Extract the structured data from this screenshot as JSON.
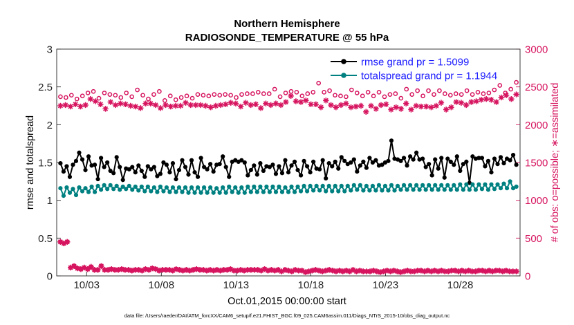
{
  "chart_data": {
    "type": "line",
    "title_line1": "Northern Hemisphere",
    "title_line2": "RADIOSONDE_TEMPERATURE @ 55 hPa",
    "xlabel": "Oct.01,2015 00:00:00 start",
    "ylabel_left": "rmse and totalspread",
    "ylabel_right": "# of obs: o=possible; ∗=assimilated",
    "footnote": "data file: /Users/raeder/DAI/ATM_forcXX/CAM6_setup/f.e21.FHIST_BGC.f09_025.CAM6assim.011/Diags_NTrS_2015-10/obs_diag_output.nc",
    "x_range": [
      1.0,
      32.0
    ],
    "x_ticks": [
      {
        "x": 3,
        "label": "10/03"
      },
      {
        "x": 8,
        "label": "10/08"
      },
      {
        "x": 13,
        "label": "10/13"
      },
      {
        "x": 18,
        "label": "10/18"
      },
      {
        "x": 23,
        "label": "10/23"
      },
      {
        "x": 28,
        "label": "10/28"
      }
    ],
    "ylim_left": [
      0,
      3
    ],
    "yticks_left": [
      "0",
      "0.5",
      "1",
      "1.5",
      "2",
      "2.5",
      "3"
    ],
    "ylim_right": [
      0,
      3000
    ],
    "yticks_right": [
      "0",
      "500",
      "1000",
      "1500",
      "2000",
      "2500",
      "3000"
    ],
    "grid": false,
    "legend_position": "top-right",
    "series": [
      {
        "name": "rmse grand pr = 1.5099",
        "axis": "left",
        "color": "#000000",
        "marker": "filled-circle",
        "line": true,
        "values": [
          1.49,
          1.38,
          1.45,
          1.31,
          1.47,
          1.52,
          1.63,
          1.54,
          1.4,
          1.58,
          1.46,
          1.47,
          1.28,
          1.56,
          1.44,
          1.5,
          1.39,
          1.36,
          1.57,
          1.44,
          1.27,
          1.42,
          1.41,
          1.44,
          1.37,
          1.46,
          1.39,
          1.31,
          1.45,
          1.41,
          1.44,
          1.32,
          1.35,
          1.5,
          1.47,
          1.37,
          1.49,
          1.28,
          1.4,
          1.53,
          1.44,
          1.34,
          1.53,
          1.37,
          1.31,
          1.56,
          1.44,
          1.41,
          1.48,
          1.38,
          1.47,
          1.48,
          1.58,
          1.44,
          1.31,
          1.51,
          1.53,
          1.51,
          1.53,
          1.5,
          1.33,
          1.4,
          1.46,
          1.34,
          1.49,
          1.39,
          1.45,
          1.44,
          1.47,
          1.35,
          1.45,
          1.36,
          1.53,
          1.37,
          1.46,
          1.51,
          1.4,
          1.33,
          1.52,
          1.45,
          1.37,
          1.51,
          1.42,
          1.41,
          1.53,
          1.29,
          1.49,
          1.45,
          1.51,
          1.42,
          1.57,
          1.52,
          1.48,
          1.5,
          1.54,
          1.38,
          1.46,
          1.51,
          1.43,
          1.56,
          1.5,
          1.53,
          1.46,
          1.47,
          1.5,
          1.52,
          1.79,
          1.55,
          1.54,
          1.52,
          1.56,
          1.46,
          1.58,
          1.54,
          1.63,
          1.54,
          1.55,
          1.44,
          1.48,
          1.33,
          1.54,
          1.42,
          1.56,
          1.3,
          1.55,
          1.51,
          1.47,
          1.58,
          1.39,
          1.48,
          1.51,
          1.23,
          1.58,
          1.55,
          1.56,
          1.56,
          1.45,
          1.52,
          1.37,
          1.55,
          1.48,
          1.57,
          1.49,
          1.55,
          1.53,
          1.6,
          1.47
        ]
      },
      {
        "name": "totalspread grand pr = 1.1944",
        "axis": "left",
        "color": "#008080",
        "marker": "filled-circle",
        "line": true,
        "values": [
          1.16,
          1.06,
          1.17,
          1.1,
          1.15,
          1.07,
          1.17,
          1.12,
          1.16,
          1.11,
          1.18,
          1.11,
          1.19,
          1.14,
          1.2,
          1.15,
          1.2,
          1.15,
          1.19,
          1.14,
          1.18,
          1.15,
          1.19,
          1.14,
          1.18,
          1.13,
          1.18,
          1.12,
          1.18,
          1.12,
          1.17,
          1.11,
          1.18,
          1.12,
          1.17,
          1.11,
          1.17,
          1.11,
          1.17,
          1.11,
          1.17,
          1.1,
          1.17,
          1.1,
          1.17,
          1.1,
          1.17,
          1.1,
          1.17,
          1.1,
          1.16,
          1.1,
          1.17,
          1.1,
          1.18,
          1.11,
          1.17,
          1.1,
          1.17,
          1.1,
          1.18,
          1.11,
          1.18,
          1.11,
          1.18,
          1.11,
          1.18,
          1.11,
          1.18,
          1.11,
          1.18,
          1.11,
          1.17,
          1.11,
          1.18,
          1.11,
          1.18,
          1.12,
          1.19,
          1.12,
          1.19,
          1.13,
          1.19,
          1.13,
          1.19,
          1.12,
          1.19,
          1.12,
          1.19,
          1.12,
          1.19,
          1.12,
          1.19,
          1.13,
          1.2,
          1.14,
          1.2,
          1.13,
          1.19,
          1.13,
          1.19,
          1.13,
          1.2,
          1.13,
          1.19,
          1.13,
          1.2,
          1.13,
          1.19,
          1.14,
          1.2,
          1.14,
          1.2,
          1.14,
          1.2,
          1.14,
          1.2,
          1.14,
          1.2,
          1.14,
          1.2,
          1.14,
          1.2,
          1.14,
          1.2,
          1.14,
          1.2,
          1.14,
          1.21,
          1.14,
          1.21,
          1.14,
          1.21,
          1.14,
          1.21,
          1.15,
          1.21,
          1.14,
          1.21,
          1.15,
          1.21,
          1.16,
          1.22,
          1.16,
          1.25,
          1.16,
          1.18
        ]
      },
      {
        "name": "obs possible",
        "axis": "right",
        "color": "#d6145f",
        "marker": "open-circle",
        "line": false,
        "values": [
          2370,
          2360,
          2390,
          2340,
          2380,
          2420,
          2440,
          2350,
          2420,
          2400,
          2390,
          2360,
          2420,
          2370,
          2460,
          2390,
          2340,
          2400,
          2440,
          2320,
          2380,
          2330,
          2360,
          2380,
          2350,
          2400,
          2390,
          2380,
          2400,
          2390,
          2400,
          2390,
          2360,
          2400,
          2410,
          2410,
          2430,
          2410,
          2410,
          2470,
          2370,
          2420,
          2440,
          2430,
          2380,
          2410,
          2430,
          2550,
          2430,
          2450,
          2390,
          2380,
          2370,
          2460,
          2420,
          2380,
          2430,
          2380,
          2430,
          2370,
          2400,
          2410,
          2350,
          2470,
          2400,
          2450,
          2380,
          2450,
          2400,
          2450,
          2410,
          2390,
          2410,
          2400,
          2450,
          2400,
          2430,
          2410,
          2420,
          2460,
          2520,
          2420,
          2470,
          2560
        ]
      },
      {
        "name": "obs assimilated",
        "axis": "right",
        "color": "#d6145f",
        "marker": "asterisk",
        "line": false,
        "values": [
          2250,
          2260,
          2240,
          2270,
          2240,
          2260,
          2340,
          2310,
          2270,
          2210,
          2300,
          2260,
          2280,
          2270,
          2250,
          2240,
          2220,
          2280,
          2280,
          2260,
          2220,
          2260,
          2240,
          2250,
          2250,
          2290,
          2260,
          2260,
          2260,
          2250,
          2230,
          2250,
          2260,
          2270,
          2290,
          2280,
          2240,
          2290,
          2260,
          2270,
          2220,
          2280,
          2260,
          2280,
          2260,
          2300,
          2380,
          2310,
          2300,
          2320,
          2270,
          2270,
          2230,
          2320,
          2260,
          2230,
          2260,
          2280,
          2230,
          2240,
          2250,
          2170,
          2250,
          2210,
          2260,
          2270,
          2200,
          2230,
          2210,
          2280,
          2200,
          2250,
          2240,
          2240,
          2230,
          2250,
          2290,
          2200,
          2230,
          2300,
          2290,
          2260,
          2300,
          2310,
          2330,
          2340,
          2330,
          2300,
          2360,
          2390,
          2340,
          2400
        ]
      },
      {
        "name": "obs possible low",
        "axis": "right",
        "color": "#d6145f",
        "marker": "open-circle",
        "line": false,
        "values": [
          450,
          430,
          450,
          110,
          130,
          100,
          90,
          110,
          90,
          120,
          80,
          80,
          130,
          80,
          80,
          90,
          80,
          80,
          90,
          80,
          80,
          70,
          80,
          80,
          70,
          90,
          80,
          100,
          90,
          70,
          80,
          80,
          80,
          70,
          90,
          80,
          70,
          80,
          70,
          80,
          90,
          80,
          80,
          70,
          80,
          70,
          80,
          70,
          80,
          80,
          90,
          70,
          70,
          80,
          70,
          80,
          80,
          80,
          80,
          70,
          90,
          70,
          80,
          70,
          80,
          60,
          80,
          70,
          60,
          80,
          70,
          70,
          50,
          60,
          70,
          80,
          70,
          60,
          70,
          80,
          70,
          60,
          70,
          60,
          70,
          60,
          80,
          60,
          70,
          60,
          60,
          60,
          70,
          60,
          50,
          60,
          70,
          60,
          70,
          60,
          50,
          60,
          70,
          60,
          60,
          70,
          70,
          60,
          70,
          60,
          70,
          60,
          70,
          60,
          60,
          70,
          70,
          60,
          70,
          60,
          70,
          60,
          60,
          70,
          70,
          60,
          70,
          60,
          70,
          70,
          60,
          70,
          60,
          60,
          60
        ]
      },
      {
        "name": "obs assimilated low",
        "axis": "right",
        "color": "#d6145f",
        "marker": "asterisk",
        "line": false,
        "values": [
          450,
          430,
          450,
          110,
          130,
          100,
          90,
          110,
          90,
          120,
          80,
          80,
          130,
          80,
          80,
          90,
          80,
          80,
          90,
          80,
          80,
          70,
          80,
          80,
          70,
          90,
          80,
          100,
          90,
          70,
          80,
          80,
          80,
          70,
          90,
          80,
          70,
          80,
          70,
          80,
          90,
          80,
          80,
          70,
          80,
          70,
          80,
          70,
          80,
          80,
          90,
          70,
          70,
          80,
          70,
          80,
          80,
          80,
          80,
          70,
          90,
          70,
          80,
          70,
          80,
          60,
          80,
          70,
          60,
          80,
          70,
          70,
          50,
          60,
          70,
          80,
          70,
          60,
          70,
          80,
          70,
          60,
          70,
          60,
          70,
          60,
          80,
          60,
          70,
          60,
          60,
          60,
          70,
          60,
          50,
          60,
          70,
          60,
          70,
          60,
          50,
          60,
          70,
          60,
          60,
          70,
          70,
          60,
          70,
          60,
          70,
          60,
          70,
          60,
          60,
          70,
          70,
          60,
          70,
          60,
          70,
          60,
          60,
          70,
          70,
          60,
          70,
          60,
          70,
          70,
          60,
          70,
          60,
          60,
          60
        ]
      }
    ]
  }
}
